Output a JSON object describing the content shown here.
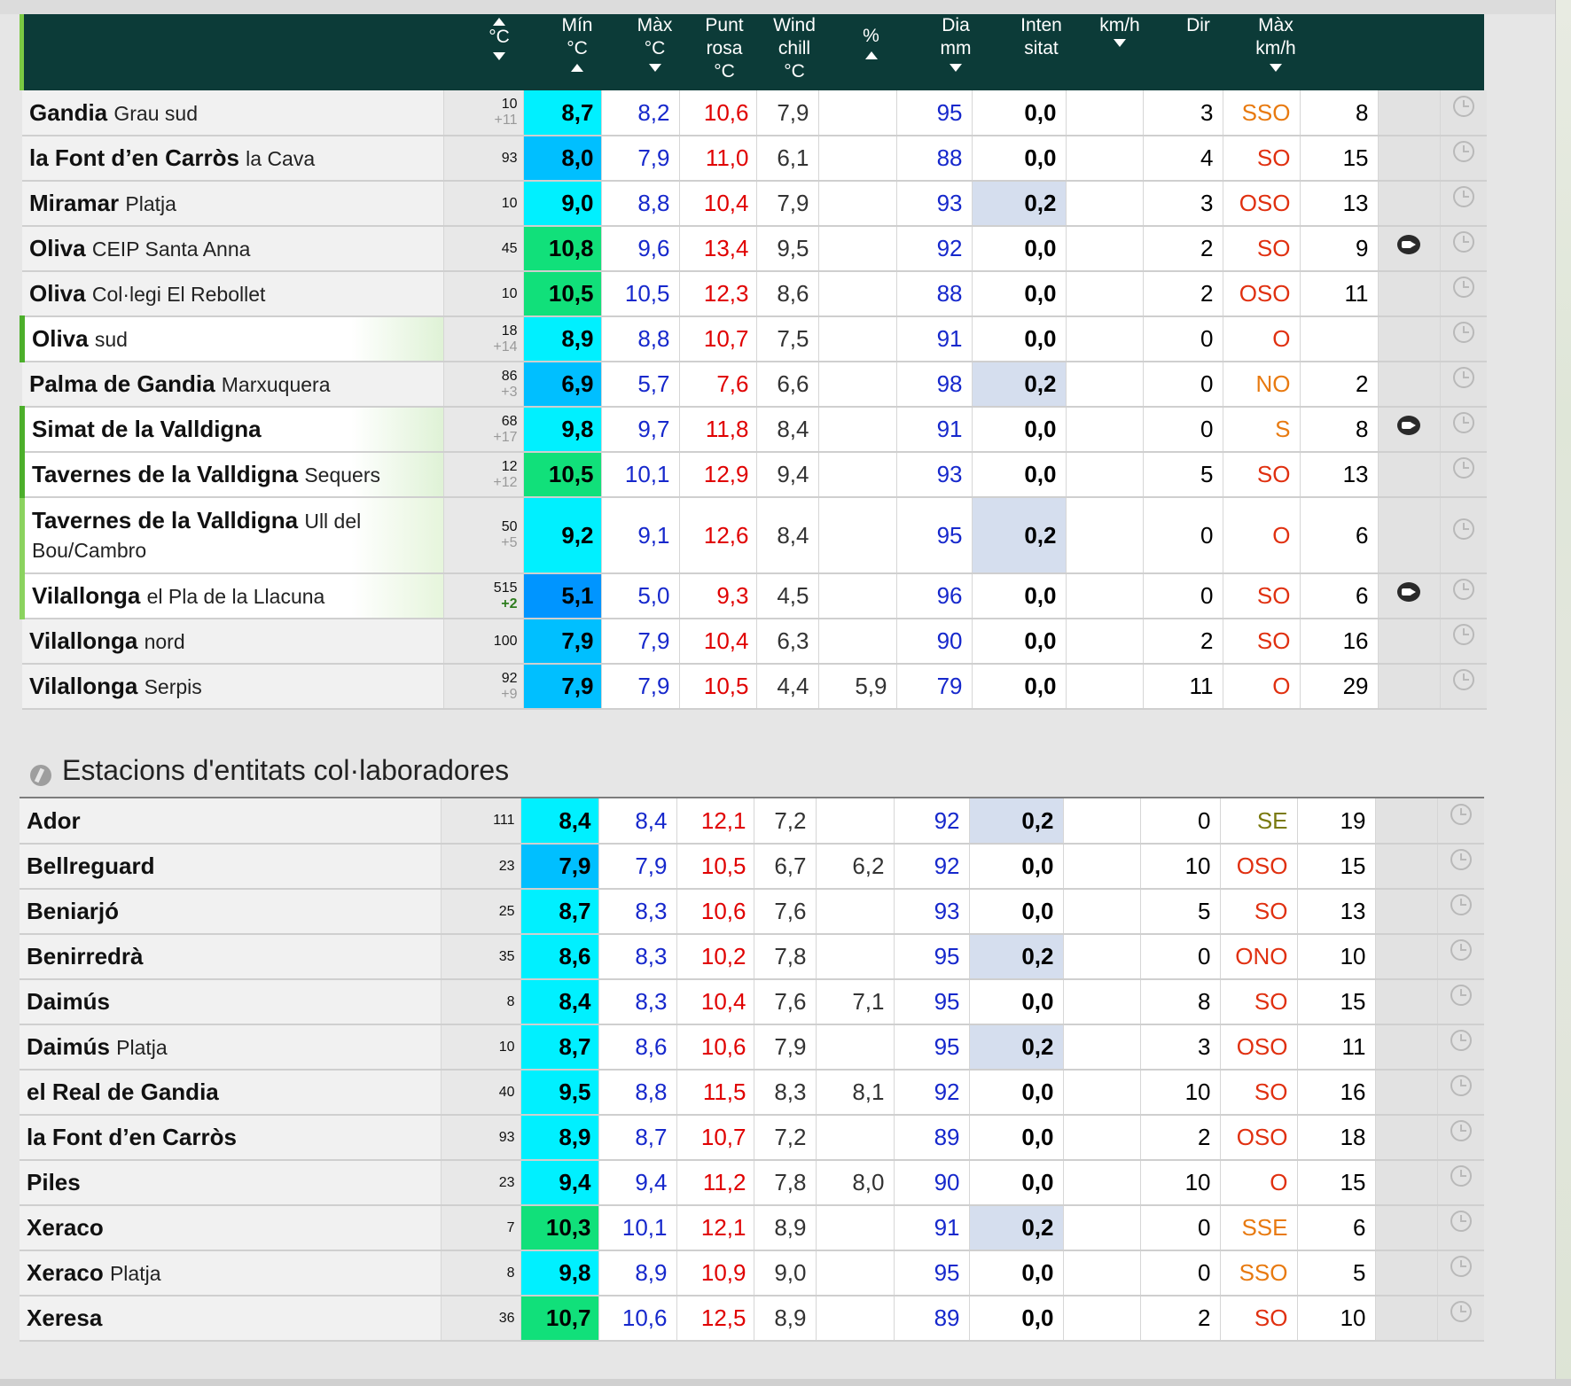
{
  "header": {
    "cols": [
      {
        "l1": "",
        "l2": "°C",
        "l3": ""
      },
      {
        "l1": "Mín",
        "l2": "°C",
        "l3": ""
      },
      {
        "l1": "Màx",
        "l2": "°C",
        "l3": ""
      },
      {
        "l1": "Punt",
        "l2": "rosa",
        "l3": "°C"
      },
      {
        "l1": "Wind",
        "l2": "chill",
        "l3": "°C"
      },
      {
        "l1": "%",
        "l2": "",
        "l3": ""
      },
      {
        "l1": "Dia",
        "l2": "mm",
        "l3": ""
      },
      {
        "l1": "Inten",
        "l2": "sitat",
        "l3": ""
      },
      {
        "l1": "km/h",
        "l2": "",
        "l3": ""
      },
      {
        "l1": "Dir",
        "l2": "",
        "l3": ""
      },
      {
        "l1": "Màx",
        "l2": "km/h",
        "l3": ""
      }
    ]
  },
  "colors": {
    "header_bg": "#0c3b38",
    "temp_cyan": "#00f0ff",
    "temp_blue": "#00bfff",
    "temp_deepblue": "#0095ff",
    "temp_green": "#11e07a",
    "min_blue": "#1628cc",
    "max_red": "#e00000",
    "dir_red": "#e03010",
    "dir_orange": "#e87a10",
    "dir_olive": "#7a7a10"
  },
  "section2": {
    "title": "Estacions d'entitats col·laboradores",
    "icon": "collaborator-icon"
  },
  "stations_top": [
    {
      "name": "Gandia",
      "sub": "Grau sud",
      "alt": "10",
      "diff": "+11",
      "t": "8,7",
      "tc": "#00f0ff",
      "mn": "8,2",
      "mx": "10,6",
      "dp": "7,9",
      "wc": "",
      "hu": "95",
      "rn": "0,0",
      "rb": false,
      "ws": "3",
      "wd": "SSO",
      "wdc": "#e87a10",
      "wg": "8",
      "cam": false,
      "hl": ""
    },
    {
      "name": "la Font d’en Carròs",
      "sub": "la Cava",
      "alt": "93",
      "diff": "",
      "t": "8,0",
      "tc": "#00bfff",
      "mn": "7,9",
      "mx": "11,0",
      "dp": "6,1",
      "wc": "",
      "hu": "88",
      "rn": "0,0",
      "rb": false,
      "ws": "4",
      "wd": "SO",
      "wdc": "#e03010",
      "wg": "15",
      "cam": false,
      "hl": ""
    },
    {
      "name": "Miramar",
      "sub": "Platja",
      "alt": "10",
      "diff": "",
      "t": "9,0",
      "tc": "#00f0ff",
      "mn": "8,8",
      "mx": "10,4",
      "dp": "7,9",
      "wc": "",
      "hu": "93",
      "rn": "0,2",
      "rb": true,
      "ws": "3",
      "wd": "OSO",
      "wdc": "#e03010",
      "wg": "13",
      "cam": false,
      "hl": ""
    },
    {
      "name": "Oliva",
      "sub": "CEIP Santa Anna",
      "alt": "45",
      "diff": "",
      "t": "10,8",
      "tc": "#11e07a",
      "mn": "9,6",
      "mx": "13,4",
      "dp": "9,5",
      "wc": "",
      "hu": "92",
      "rn": "0,0",
      "rb": false,
      "ws": "2",
      "wd": "SO",
      "wdc": "#e03010",
      "wg": "9",
      "cam": true,
      "hl": ""
    },
    {
      "name": "Oliva",
      "sub": "Col·legi El Rebollet",
      "alt": "10",
      "diff": "",
      "t": "10,5",
      "tc": "#11e07a",
      "mn": "10,5",
      "mx": "12,3",
      "dp": "8,6",
      "wc": "",
      "hu": "88",
      "rn": "0,0",
      "rb": false,
      "ws": "2",
      "wd": "OSO",
      "wdc": "#e03010",
      "wg": "11",
      "cam": false,
      "hl": ""
    },
    {
      "name": "Oliva",
      "sub": "sud",
      "alt": "18",
      "diff": "+14",
      "t": "8,9",
      "tc": "#00f0ff",
      "mn": "8,8",
      "mx": "10,7",
      "dp": "7,5",
      "wc": "",
      "hu": "91",
      "rn": "0,0",
      "rb": false,
      "ws": "0",
      "wd": "O",
      "wdc": "#e03010",
      "wg": "",
      "cam": false,
      "hl": "hl"
    },
    {
      "name": "Palma de Gandia",
      "sub": "Marxuquera",
      "alt": "86",
      "diff": "+3",
      "t": "6,9",
      "tc": "#00bfff",
      "mn": "5,7",
      "mx": "7,6",
      "dp": "6,6",
      "wc": "",
      "hu": "98",
      "rn": "0,2",
      "rb": true,
      "ws": "0",
      "wd": "NO",
      "wdc": "#e87a10",
      "wg": "2",
      "cam": false,
      "hl": ""
    },
    {
      "name": "Simat de la Valldigna",
      "sub": "",
      "alt": "68",
      "diff": "+17",
      "t": "9,8",
      "tc": "#00f0ff",
      "mn": "9,7",
      "mx": "11,8",
      "dp": "8,4",
      "wc": "",
      "hu": "91",
      "rn": "0,0",
      "rb": false,
      "ws": "0",
      "wd": "S",
      "wdc": "#e87a10",
      "wg": "8",
      "cam": true,
      "hl": "hl"
    },
    {
      "name": "Tavernes de la Valldigna",
      "sub": "Sequers",
      "alt": "12",
      "diff": "+12",
      "t": "10,5",
      "tc": "#11e07a",
      "mn": "10,1",
      "mx": "12,9",
      "dp": "9,4",
      "wc": "",
      "hu": "93",
      "rn": "0,0",
      "rb": false,
      "ws": "5",
      "wd": "SO",
      "wdc": "#e03010",
      "wg": "13",
      "cam": false,
      "hl": "hl"
    },
    {
      "name": "Tavernes de la Valldigna",
      "sub": "Ull del Bou/Cambro",
      "alt": "50",
      "diff": "+5",
      "t": "9,2",
      "tc": "#00f0ff",
      "mn": "9,1",
      "mx": "12,6",
      "dp": "8,4",
      "wc": "",
      "hu": "95",
      "rn": "0,2",
      "rb": true,
      "ws": "0",
      "wd": "O",
      "wdc": "#e03010",
      "wg": "6",
      "cam": false,
      "hl": "hl2",
      "tall": true
    },
    {
      "name": "Vilallonga",
      "sub": "el Pla de la Llacuna",
      "alt": "515",
      "diff": "+2",
      "diffg": true,
      "t": "5,1",
      "tc": "#0095ff",
      "mn": "5,0",
      "mx": "9,3",
      "dp": "4,5",
      "wc": "",
      "hu": "96",
      "rn": "0,0",
      "rb": false,
      "ws": "0",
      "wd": "SO",
      "wdc": "#e03010",
      "wg": "6",
      "cam": true,
      "hl": "hl2"
    },
    {
      "name": "Vilallonga",
      "sub": "nord",
      "alt": "100",
      "diff": "",
      "t": "7,9",
      "tc": "#00bfff",
      "mn": "7,9",
      "mx": "10,4",
      "dp": "6,3",
      "wc": "",
      "hu": "90",
      "rn": "0,0",
      "rb": false,
      "ws": "2",
      "wd": "SO",
      "wdc": "#e03010",
      "wg": "16",
      "cam": false,
      "hl": ""
    },
    {
      "name": "Vilallonga",
      "sub": "Serpis",
      "alt": "92",
      "diff": "+9",
      "t": "7,9",
      "tc": "#00bfff",
      "mn": "7,9",
      "mx": "10,5",
      "dp": "4,4",
      "wc": "5,9",
      "hu": "79",
      "rn": "0,0",
      "rb": false,
      "ws": "11",
      "wd": "O",
      "wdc": "#e03010",
      "wg": "29",
      "cam": false,
      "hl": ""
    }
  ],
  "stations_collab": [
    {
      "name": "Ador",
      "sub": "",
      "alt": "111",
      "diff": "",
      "t": "8,4",
      "tc": "#00f0ff",
      "mn": "8,4",
      "mx": "12,1",
      "dp": "7,2",
      "wc": "",
      "hu": "92",
      "rn": "0,2",
      "rb": true,
      "ws": "0",
      "wd": "SE",
      "wdc": "#7a7a10",
      "wg": "19",
      "cam": false,
      "hl": ""
    },
    {
      "name": "Bellreguard",
      "sub": "",
      "alt": "23",
      "diff": "",
      "t": "7,9",
      "tc": "#00bfff",
      "mn": "7,9",
      "mx": "10,5",
      "dp": "6,7",
      "wc": "6,2",
      "hu": "92",
      "rn": "0,0",
      "rb": false,
      "ws": "10",
      "wd": "OSO",
      "wdc": "#e03010",
      "wg": "15",
      "cam": false,
      "hl": ""
    },
    {
      "name": "Beniarjó",
      "sub": "",
      "alt": "25",
      "diff": "",
      "t": "8,7",
      "tc": "#00f0ff",
      "mn": "8,3",
      "mx": "10,6",
      "dp": "7,6",
      "wc": "",
      "hu": "93",
      "rn": "0,0",
      "rb": false,
      "ws": "5",
      "wd": "SO",
      "wdc": "#e03010",
      "wg": "13",
      "cam": false,
      "hl": ""
    },
    {
      "name": "Benirredrà",
      "sub": "",
      "alt": "35",
      "diff": "",
      "t": "8,6",
      "tc": "#00f0ff",
      "mn": "8,3",
      "mx": "10,2",
      "dp": "7,8",
      "wc": "",
      "hu": "95",
      "rn": "0,2",
      "rb": true,
      "ws": "0",
      "wd": "ONO",
      "wdc": "#e03010",
      "wg": "10",
      "cam": false,
      "hl": ""
    },
    {
      "name": "Daimús",
      "sub": "",
      "alt": "8",
      "diff": "",
      "t": "8,4",
      "tc": "#00f0ff",
      "mn": "8,3",
      "mx": "10,4",
      "dp": "7,6",
      "wc": "7,1",
      "hu": "95",
      "rn": "0,0",
      "rb": false,
      "ws": "8",
      "wd": "SO",
      "wdc": "#e03010",
      "wg": "15",
      "cam": false,
      "hl": ""
    },
    {
      "name": "Daimús",
      "sub": "Platja",
      "alt": "10",
      "diff": "",
      "t": "8,7",
      "tc": "#00f0ff",
      "mn": "8,6",
      "mx": "10,6",
      "dp": "7,9",
      "wc": "",
      "hu": "95",
      "rn": "0,2",
      "rb": true,
      "ws": "3",
      "wd": "OSO",
      "wdc": "#e03010",
      "wg": "11",
      "cam": false,
      "hl": ""
    },
    {
      "name": "el Real de Gandia",
      "sub": "",
      "alt": "40",
      "diff": "",
      "t": "9,5",
      "tc": "#00f0ff",
      "mn": "8,8",
      "mx": "11,5",
      "dp": "8,3",
      "wc": "8,1",
      "hu": "92",
      "rn": "0,0",
      "rb": false,
      "ws": "10",
      "wd": "SO",
      "wdc": "#e03010",
      "wg": "16",
      "cam": false,
      "hl": ""
    },
    {
      "name": "la Font d’en Carròs",
      "sub": "",
      "alt": "93",
      "diff": "",
      "t": "8,9",
      "tc": "#00f0ff",
      "mn": "8,7",
      "mx": "10,7",
      "dp": "7,2",
      "wc": "",
      "hu": "89",
      "rn": "0,0",
      "rb": false,
      "ws": "2",
      "wd": "OSO",
      "wdc": "#e03010",
      "wg": "18",
      "cam": false,
      "hl": ""
    },
    {
      "name": "Piles",
      "sub": "",
      "alt": "23",
      "diff": "",
      "t": "9,4",
      "tc": "#00f0ff",
      "mn": "9,4",
      "mx": "11,2",
      "dp": "7,8",
      "wc": "8,0",
      "hu": "90",
      "rn": "0,0",
      "rb": false,
      "ws": "10",
      "wd": "O",
      "wdc": "#e03010",
      "wg": "15",
      "cam": false,
      "hl": ""
    },
    {
      "name": "Xeraco",
      "sub": "",
      "alt": "7",
      "diff": "",
      "t": "10,3",
      "tc": "#11e07a",
      "mn": "10,1",
      "mx": "12,1",
      "dp": "8,9",
      "wc": "",
      "hu": "91",
      "rn": "0,2",
      "rb": true,
      "ws": "0",
      "wd": "SSE",
      "wdc": "#e87a10",
      "wg": "6",
      "cam": false,
      "hl": ""
    },
    {
      "name": "Xeraco",
      "sub": "Platja",
      "alt": "8",
      "diff": "",
      "t": "9,8",
      "tc": "#00f0ff",
      "mn": "8,9",
      "mx": "10,9",
      "dp": "9,0",
      "wc": "",
      "hu": "95",
      "rn": "0,0",
      "rb": false,
      "ws": "0",
      "wd": "SSO",
      "wdc": "#e87a10",
      "wg": "5",
      "cam": false,
      "hl": ""
    },
    {
      "name": "Xeresa",
      "sub": "",
      "alt": "36",
      "diff": "",
      "t": "10,7",
      "tc": "#11e07a",
      "mn": "10,6",
      "mx": "12,5",
      "dp": "8,9",
      "wc": "",
      "hu": "89",
      "rn": "0,0",
      "rb": false,
      "ws": "2",
      "wd": "SO",
      "wdc": "#e03010",
      "wg": "10",
      "cam": false,
      "hl": ""
    }
  ]
}
